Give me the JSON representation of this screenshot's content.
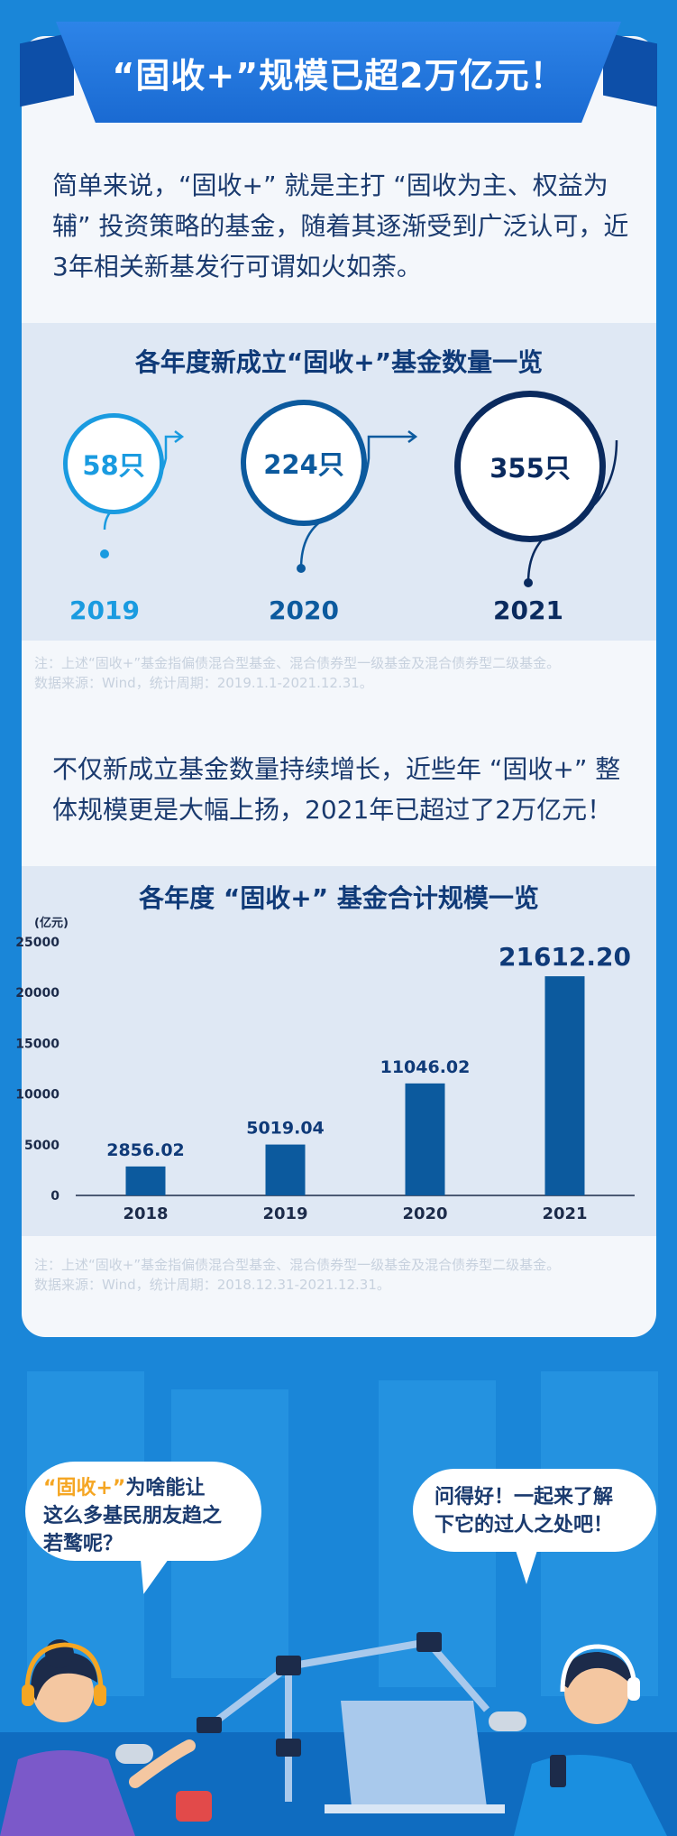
{
  "header": {
    "title": "“固收+”规模已超2万亿元！"
  },
  "intro": {
    "text": "简单来说，“固收+” 就是主打 “固收为主、权益为辅” 投资策略的基金，随着其逐渐受到广泛认可，近3年相关新基发行可谓如火如荼。"
  },
  "section1": {
    "title": "各年度新成立“固收+”基金数量一览",
    "items": [
      {
        "year": "2019",
        "value": "58只"
      },
      {
        "year": "2020",
        "value": "224只"
      },
      {
        "year": "2021",
        "value": "355只"
      }
    ],
    "note_line1": "注：上述“固收+”基金指偏债混合型基金、混合债券型一级基金及混合债券型二级基金。",
    "note_line2": "数据来源：Wind，统计周期：2019.1.1-2021.12.31。"
  },
  "paragraph2": {
    "text": "不仅新成立基金数量持续增长，近些年 “固收+” 整体规模更是大幅上扬，2021年已超过了2万亿元！"
  },
  "section2": {
    "title": "各年度 “固收+” 基金合计规模一览",
    "note_line1": "注：上述“固收+”基金指偏债混合型基金、混合债券型一级基金及混合债券型二级基金。",
    "note_line2": "数据来源：Wind，统计周期：2018.12.31-2021.12.31。"
  },
  "chart_data": {
    "type": "bar",
    "title": "各年度 “固收+” 基金合计规模一览",
    "ylabel": "(亿元)",
    "categories": [
      "2018",
      "2019",
      "2020",
      "2021"
    ],
    "values": [
      2856.02,
      5019.04,
      11046.02,
      21612.2
    ],
    "value_labels": [
      "2856.02",
      "5019.04",
      "11046.02",
      "21612.20"
    ],
    "yticks": [
      "0",
      "5000",
      "10000",
      "15000",
      "20000",
      "25000"
    ],
    "ylim": [
      0,
      25000
    ],
    "bar_color": "#0c5a9e"
  },
  "dialog": {
    "left_highlight": "“固收+”",
    "left_rest_line1": "为啥能让",
    "left_line2": "这么多基民朋友趋之",
    "left_line3": "若鹜呢？",
    "right_line1": "问得好！一起来了解",
    "right_line2": "下它的过人之处吧！"
  },
  "colors": {
    "background": "#1a86d8",
    "accent": "#0f3a78",
    "ring2019": "#1a9be0",
    "ring2020": "#0c5a9e",
    "ring2021": "#0a2a5e"
  }
}
